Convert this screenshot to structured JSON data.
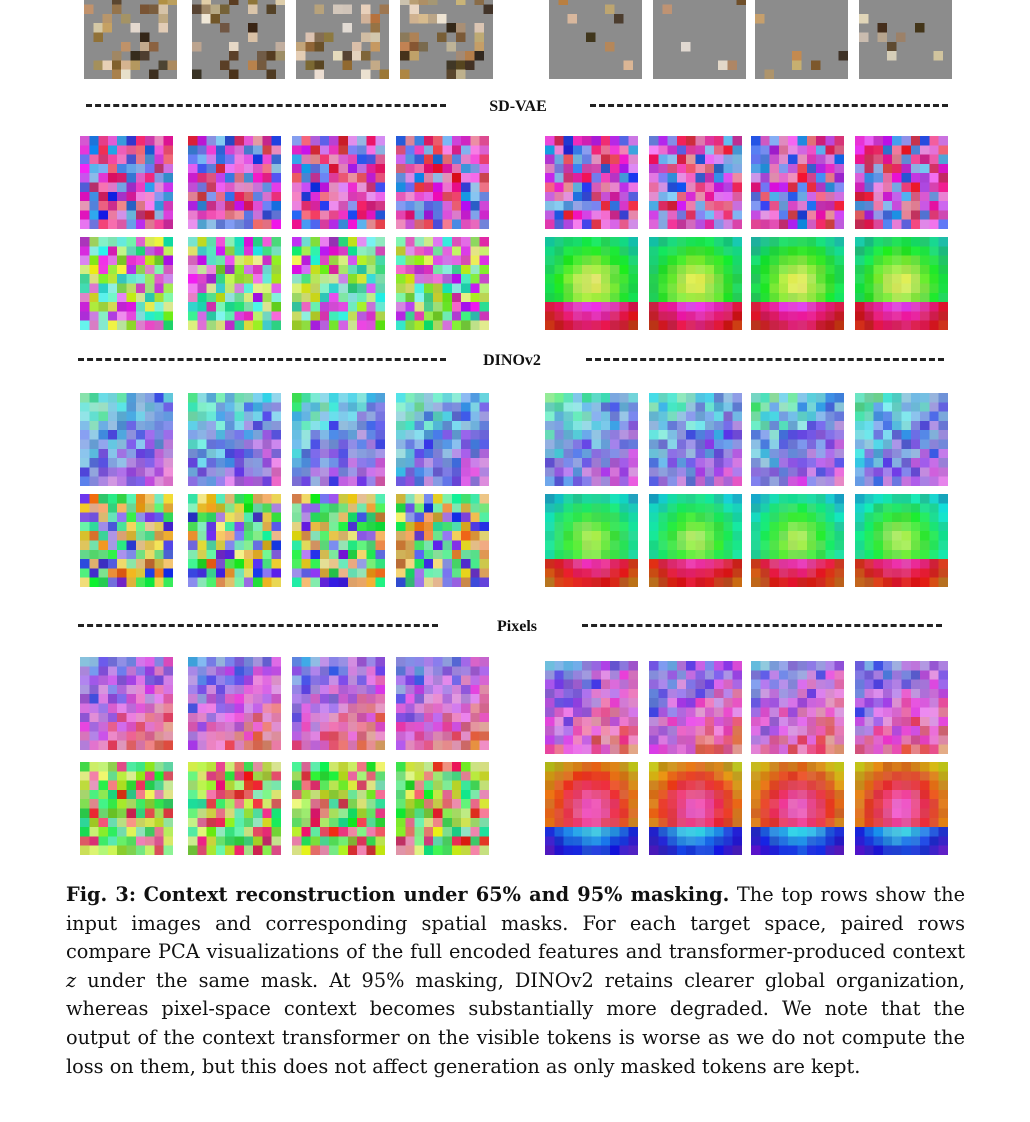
{
  "figure": {
    "sections": [
      "SD-VAE",
      "DINOv2",
      "Pixels"
    ],
    "caption": {
      "label": "Fig. 3:",
      "title": "Context reconstruction under 65% and 95% masking.",
      "text_before_var": "The top rows show the input images and corresponding spatial masks. For each target space, paired rows compare PCA visualizations of the full encoded features and transformer-produced context",
      "var": "z",
      "text_after_var": "under the same mask. At 95% masking, DINOv2 retains clearer global organization, whereas pixel-space context becomes substantially more degraded. We note that the output of the context transformer on the visible tokens is worse as we do not compute the loss on them, but this does not affect generation as only masked tokens are kept."
    }
  }
}
